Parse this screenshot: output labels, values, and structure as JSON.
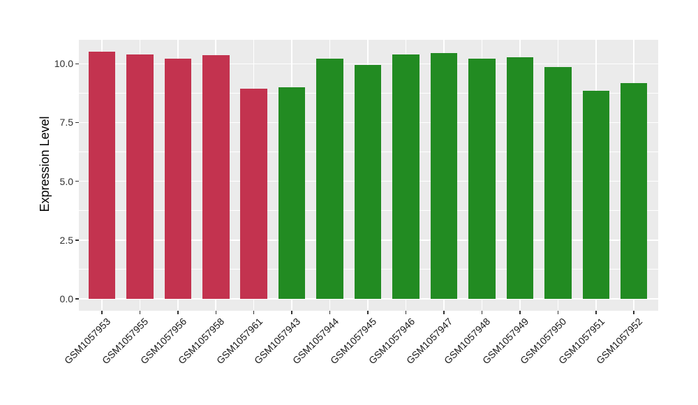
{
  "chart_data": {
    "type": "bar",
    "title": "",
    "xlabel": "",
    "ylabel": "Expression Level",
    "categories": [
      "GSM1057953",
      "GSM1057955",
      "GSM1057956",
      "GSM1057958",
      "GSM1057961",
      "GSM1057943",
      "GSM1057944",
      "GSM1057945",
      "GSM1057946",
      "GSM1057947",
      "GSM1057948",
      "GSM1057949",
      "GSM1057950",
      "GSM1057951",
      "GSM1057952"
    ],
    "values": [
      10.52,
      10.39,
      10.22,
      10.37,
      8.94,
      9.01,
      10.22,
      9.96,
      10.39,
      10.44,
      10.22,
      10.28,
      9.86,
      8.84,
      9.19
    ],
    "bar_colors": [
      "#C3334F",
      "#C3334F",
      "#C3334F",
      "#C3334F",
      "#C3334F",
      "#228B22",
      "#228B22",
      "#228B22",
      "#228B22",
      "#228B22",
      "#228B22",
      "#228B22",
      "#228B22",
      "#228B22",
      "#228B22"
    ],
    "group_colors": {
      "red_group": "#C3334F",
      "green_group": "#228B22"
    },
    "ytick_labels": [
      "0.0",
      "2.5",
      "5.0",
      "7.5",
      "10.0"
    ],
    "ytick_values": [
      0,
      2.5,
      5,
      7.5,
      10
    ],
    "minor_ytick_values": [
      1.25,
      3.75,
      6.25,
      8.75
    ],
    "ylim": [
      0,
      11.02
    ],
    "grid": "major-and-minor",
    "legend": "none",
    "panel_bg": "#EBEBEB",
    "grid_color": "#FFFFFF",
    "background": "#FFFFFF"
  }
}
